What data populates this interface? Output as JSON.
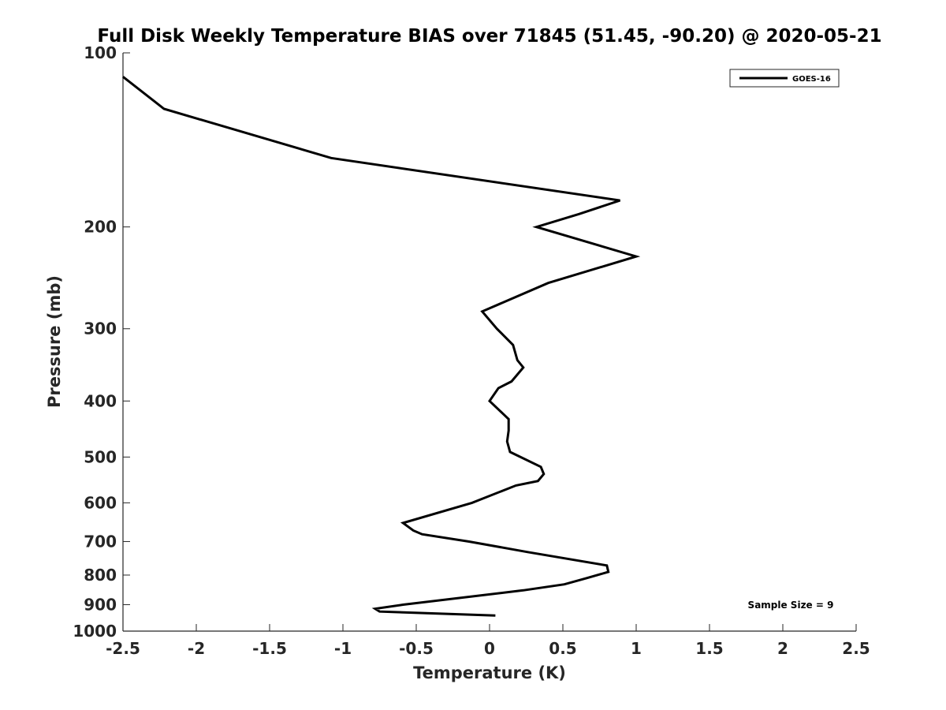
{
  "chart_data": {
    "type": "line",
    "title": "Full Disk Weekly Temperature BIAS over 71845 (51.45, -90.20) @ 2020-05-21",
    "xlabel": "Temperature (K)",
    "ylabel": "Pressure (mb)",
    "xlim": [
      -2.5,
      2.5
    ],
    "ylim": [
      100,
      1000
    ],
    "y_scale": "log",
    "y_reversed": true,
    "xticks": [
      -2.5,
      -2,
      -1.5,
      -1,
      -0.5,
      0,
      0.5,
      1,
      1.5,
      2,
      2.5
    ],
    "xtick_labels": [
      "-2.5",
      "-2",
      "-1.5",
      "-1",
      "-0.5",
      "0",
      "0.5",
      "1",
      "1.5",
      "2",
      "2.5"
    ],
    "yticks": [
      100,
      200,
      300,
      400,
      500,
      600,
      700,
      800,
      900,
      1000
    ],
    "ytick_labels": [
      "100",
      "200",
      "300",
      "400",
      "500",
      "600",
      "700",
      "800",
      "900",
      "1000"
    ],
    "grid": false,
    "legend_position": "top-right",
    "annotation": "Sample Size = 9",
    "series": [
      {
        "name": "GOES-16",
        "color": "#000000",
        "points": [
          [
            -2.5,
            110
          ],
          [
            -2.22,
            125
          ],
          [
            -1.08,
            152
          ],
          [
            0.89,
            180
          ],
          [
            0.61,
            190
          ],
          [
            0.32,
            200
          ],
          [
            1.0,
            225
          ],
          [
            0.4,
            250
          ],
          [
            -0.05,
            280
          ],
          [
            0.05,
            300
          ],
          [
            0.16,
            320
          ],
          [
            0.19,
            340
          ],
          [
            0.23,
            350
          ],
          [
            0.15,
            370
          ],
          [
            0.06,
            380
          ],
          [
            0.0,
            400
          ],
          [
            0.13,
            430
          ],
          [
            0.13,
            450
          ],
          [
            0.12,
            470
          ],
          [
            0.14,
            490
          ],
          [
            0.35,
            520
          ],
          [
            0.37,
            535
          ],
          [
            0.33,
            550
          ],
          [
            0.18,
            560
          ],
          [
            -0.12,
            600
          ],
          [
            -0.59,
            650
          ],
          [
            -0.52,
            670
          ],
          [
            -0.46,
            680
          ],
          [
            -0.14,
            700
          ],
          [
            0.26,
            730
          ],
          [
            0.8,
            770
          ],
          [
            0.81,
            790
          ],
          [
            0.66,
            810
          ],
          [
            0.51,
            830
          ],
          [
            0.23,
            850
          ],
          [
            -0.59,
            900
          ],
          [
            -0.78,
            915
          ],
          [
            -0.75,
            925
          ],
          [
            0.04,
            940
          ]
        ]
      }
    ]
  }
}
